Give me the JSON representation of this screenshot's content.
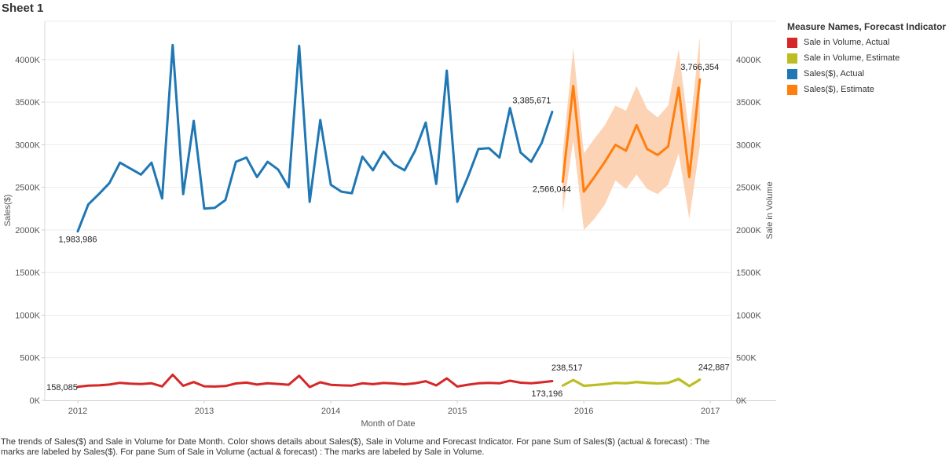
{
  "sheet": {
    "title": "Sheet 1"
  },
  "legend": {
    "title": "Measure Names, Forecast Indicator",
    "items": [
      {
        "label": "Sale in Volume, Actual",
        "color": "#d62728"
      },
      {
        "label": "Sale in Volume, Estimate",
        "color": "#bcbd22"
      },
      {
        "label": "Sales($), Actual",
        "color": "#1f77b4"
      },
      {
        "label": "Sales($), Estimate",
        "color": "#ff7f0e"
      }
    ]
  },
  "caption": "The trends of Sales($) and Sale in Volume for Date Month.  Color shows details about Sales($), Sale in Volume and Forecast Indicator.  For pane Sum of Sales($) (actual & forecast) :  The marks are labeled by Sales($).  For pane Sum of Sale in Volume (actual & forecast) :  The marks are labeled by Sale in Volume.",
  "chart_data": {
    "type": "line",
    "xlabel": "Month of Date",
    "ylabel": "Sales($)",
    "ylabel_right": "Sale in Volume",
    "ylim": [
      0,
      4450000
    ],
    "yticks": [
      0,
      500000,
      1000000,
      1500000,
      2000000,
      2500000,
      3000000,
      3500000,
      4000000
    ],
    "ytick_labels": [
      "0K",
      "500K",
      "1000K",
      "1500K",
      "2000K",
      "2500K",
      "3000K",
      "3500K",
      "4000K"
    ],
    "xticks": [
      "2012",
      "2013",
      "2014",
      "2015",
      "2016",
      "2017"
    ],
    "grid": true,
    "legend_position": "right",
    "series": [
      {
        "name": "Sales($), Actual",
        "color": "#1f77b4",
        "start": "2012-01",
        "values": [
          1983986,
          2300000,
          2420000,
          2550000,
          2790000,
          2720000,
          2650000,
          2790000,
          2370000,
          4170000,
          2420000,
          3280000,
          2250000,
          2260000,
          2350000,
          2800000,
          2850000,
          2620000,
          2800000,
          2710000,
          2500000,
          4160000,
          2330000,
          3290000,
          2530000,
          2450000,
          2430000,
          2860000,
          2700000,
          2920000,
          2770000,
          2700000,
          2930000,
          3260000,
          2540000,
          3870000,
          2330000,
          2620000,
          2950000,
          2960000,
          2850000,
          3430000,
          2910000,
          2800000,
          3020000,
          3385671
        ]
      },
      {
        "name": "Sales($), Estimate",
        "color": "#ff7f0e",
        "start": "2015-11",
        "values": [
          2566044,
          3690000,
          2450000,
          2620000,
          2800000,
          3000000,
          2930000,
          3230000,
          2950000,
          2880000,
          2980000,
          3670000,
          2620000,
          3766354
        ],
        "lower": [
          2200000,
          3050000,
          2000000,
          2130000,
          2300000,
          2580000,
          2480000,
          2650000,
          2480000,
          2420000,
          2530000,
          2900000,
          2130000,
          2980000
        ],
        "upper": [
          2900000,
          4130000,
          2900000,
          3070000,
          3230000,
          3460000,
          3400000,
          3690000,
          3420000,
          3320000,
          3460000,
          4120000,
          3120000,
          4270000
        ]
      },
      {
        "name": "Sale in Volume, Actual",
        "color": "#d62728",
        "start": "2012-01",
        "values": [
          158085,
          173000,
          176000,
          185000,
          205000,
          195000,
          192000,
          200000,
          163000,
          300000,
          170000,
          215000,
          165000,
          162000,
          168000,
          198000,
          208000,
          185000,
          201000,
          193000,
          183000,
          288000,
          156000,
          212000,
          182000,
          176000,
          173000,
          200000,
          190000,
          204000,
          198000,
          188000,
          200000,
          225000,
          175000,
          258000,
          162000,
          183000,
          200000,
          205000,
          200000,
          230000,
          207000,
          200000,
          212000,
          226000
        ]
      },
      {
        "name": "Sale in Volume, Estimate",
        "color": "#bcbd22",
        "start": "2015-11",
        "values": [
          173196,
          238517,
          170000,
          180000,
          190000,
          205000,
          200000,
          215000,
          205000,
          198000,
          205000,
          250000,
          168000,
          242887
        ],
        "lower": [
          160000,
          220000,
          155000,
          165000,
          175000,
          190000,
          185000,
          198000,
          188000,
          182000,
          188000,
          228000,
          150000,
          222000
        ],
        "upper": [
          186000,
          256000,
          186000,
          196000,
          206000,
          221000,
          216000,
          232000,
          222000,
          215000,
          222000,
          272000,
          186000,
          262000
        ]
      }
    ],
    "annotations": [
      {
        "text": "1,983,986",
        "series": "Sales($), Actual",
        "month": "2012-01"
      },
      {
        "text": "3,385,671",
        "series": "Sales($), Actual",
        "month": "2015-10"
      },
      {
        "text": "2,566,044",
        "series": "Sales($), Estimate",
        "month": "2015-11"
      },
      {
        "text": "3,766,354",
        "series": "Sales($), Estimate",
        "month": "2016-12"
      },
      {
        "text": "158,085",
        "series": "Sale in Volume, Actual",
        "month": "2012-01"
      },
      {
        "text": "238,517",
        "series": "Sale in Volume, Estimate",
        "month": "2015-12"
      },
      {
        "text": "173,196",
        "series": "Sale in Volume, Estimate",
        "month": "2015-11"
      },
      {
        "text": "242,887",
        "series": "Sale in Volume, Estimate",
        "month": "2016-12"
      }
    ]
  }
}
